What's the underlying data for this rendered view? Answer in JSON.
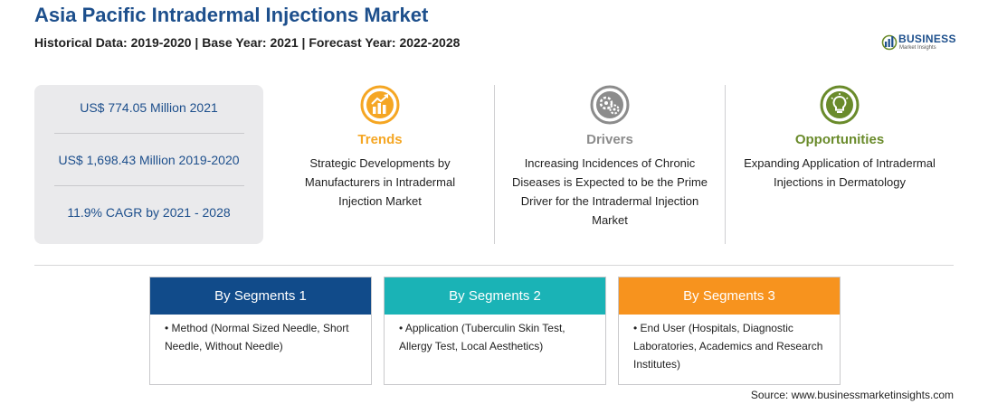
{
  "header": {
    "title": "Asia Pacific Intradermal Injections Market",
    "subtitle": "Historical Data: 2019-2020 | Base Year: 2021 | Forecast Year: 2022-2028"
  },
  "logo": {
    "brand": "BUSINESS",
    "tagline": "Market Insights",
    "icon": "bar-chart-globe-logo"
  },
  "stats": [
    {
      "text": "US$ 774.05 Million 2021"
    },
    {
      "text": "US$ 1,698.43 Million 2019-2020"
    },
    {
      "text": "11.9% CAGR by 2021 - 2028"
    }
  ],
  "pillars": {
    "trends": {
      "icon": "growth-chart-icon",
      "color": "#f5a623",
      "heading": "Trends",
      "text": "Strategic Developments by Manufacturers in Intradermal Injection Market"
    },
    "drivers": {
      "icon": "gears-icon",
      "color": "#8c8c8c",
      "heading": "Drivers",
      "text": "Increasing Incidences of Chronic Diseases is Expected to be the Prime Driver for the Intradermal Injection Market"
    },
    "opportunities": {
      "icon": "lightbulb-icon",
      "color": "#6a8b2b",
      "heading": "Opportunities",
      "text": "Expanding Application of Intradermal Injections in Dermatology"
    }
  },
  "segments": [
    {
      "heading": "By Segments 1",
      "color": "#114b8a",
      "bullet": "• Method (Normal Sized Needle, Short Needle, Without Needle)"
    },
    {
      "heading": "By Segments 2",
      "color": "#1ab3b6",
      "bullet": "• Application (Tuberculin Skin Test, Allergy Test, Local Aesthetics)"
    },
    {
      "heading": "By Segments 3",
      "color": "#f7931e",
      "bullet": "• End User (Hospitals, Diagnostic Laboratories, Academics and Research Institutes)"
    }
  ],
  "footer": {
    "source": "Source: www.businessmarketinsights.com"
  }
}
